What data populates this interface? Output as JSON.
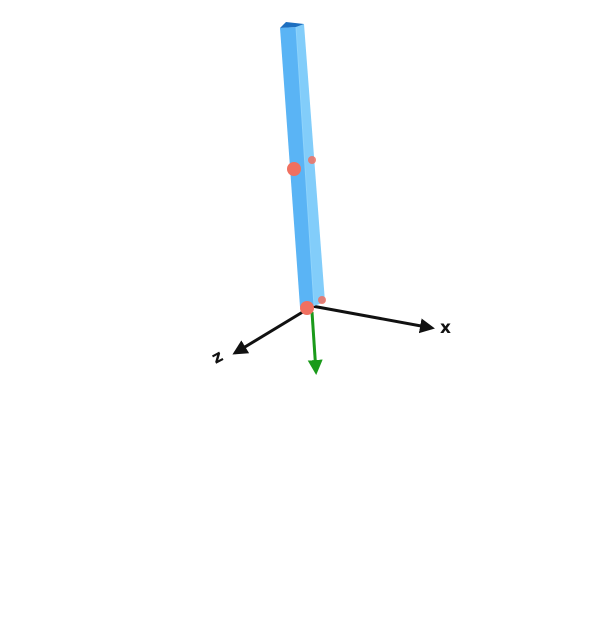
{
  "scene": {
    "background": "#ffffff",
    "axes": [
      {
        "name": "x",
        "label": "x",
        "color": "#111111"
      },
      {
        "name": "y",
        "label": "",
        "color": "#1a9a1a"
      },
      {
        "name": "z",
        "label": "z",
        "color": "#111111"
      }
    ],
    "beam": {
      "shape": "square prism",
      "colors": {
        "front": "#5ab4f5",
        "side": "#82cdfa",
        "top": "#1d6fc0"
      }
    },
    "markers": {
      "shape": "sphere",
      "color": "#f07060",
      "count": 4
    }
  }
}
